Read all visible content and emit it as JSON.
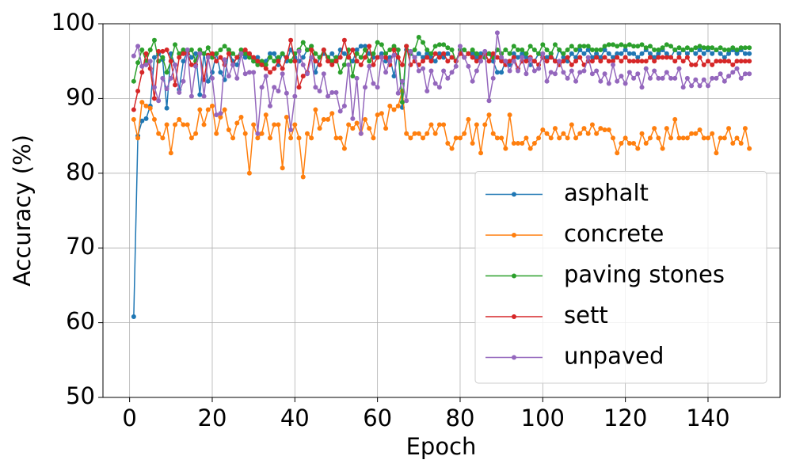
{
  "chart_data": {
    "type": "line",
    "xlabel": "Epoch",
    "ylabel": "Accuracy (%)",
    "xlim": [
      -6.45,
      157.45
    ],
    "ylim": [
      50,
      100
    ],
    "xticks": [
      0,
      20,
      40,
      60,
      80,
      100,
      120,
      140
    ],
    "yticks": [
      50,
      60,
      70,
      80,
      90,
      100
    ],
    "grid": true,
    "legend": "lower right",
    "x": [
      1,
      2,
      3,
      4,
      5,
      6,
      7,
      8,
      9,
      10,
      11,
      12,
      13,
      14,
      15,
      16,
      17,
      18,
      19,
      20,
      21,
      22,
      23,
      24,
      25,
      26,
      27,
      28,
      29,
      30,
      31,
      32,
      33,
      34,
      35,
      36,
      37,
      38,
      39,
      40,
      41,
      42,
      43,
      44,
      45,
      46,
      47,
      48,
      49,
      50,
      51,
      52,
      53,
      54,
      55,
      56,
      57,
      58,
      59,
      60,
      61,
      62,
      63,
      64,
      65,
      66,
      67,
      68,
      69,
      70,
      71,
      72,
      73,
      74,
      75,
      76,
      77,
      78,
      79,
      80,
      81,
      82,
      83,
      84,
      85,
      86,
      87,
      88,
      89,
      90,
      91,
      92,
      93,
      94,
      95,
      96,
      97,
      98,
      99,
      100,
      101,
      102,
      103,
      104,
      105,
      106,
      107,
      108,
      109,
      110,
      111,
      112,
      113,
      114,
      115,
      116,
      117,
      118,
      119,
      120,
      121,
      122,
      123,
      124,
      125,
      126,
      127,
      128,
      129,
      130,
      131,
      132,
      133,
      134,
      135,
      136,
      137,
      138,
      139,
      140,
      141,
      142,
      143,
      144,
      145,
      146,
      147,
      148,
      149,
      150
    ],
    "series": [
      {
        "name": "asphalt",
        "color": "#1f77b4",
        "values": [
          60.8,
          85.0,
          87.0,
          87.3,
          89.0,
          95.5,
          96.0,
          95.2,
          88.7,
          96.0,
          94.5,
          91.2,
          95.0,
          96.3,
          95.5,
          96.0,
          90.5,
          96.0,
          92.3,
          93.5,
          96.0,
          93.5,
          92.5,
          96.5,
          95.0,
          94.5,
          96.0,
          95.5,
          96.0,
          95.0,
          95.5,
          94.5,
          95.0,
          96.0,
          96.0,
          94.5,
          96.0,
          95.0,
          96.5,
          95.5,
          95.0,
          95.5,
          96.5,
          97.0,
          93.5,
          95.5,
          96.0,
          95.5,
          96.0,
          95.0,
          96.5,
          96.0,
          95.5,
          95.0,
          96.5,
          97.0,
          97.0,
          96.0,
          95.5,
          95.5,
          96.0,
          95.0,
          95.5,
          93.0,
          96.5,
          88.8,
          96.5,
          96.0,
          95.5,
          96.0,
          95.5,
          96.0,
          95.5,
          95.0,
          96.0,
          95.5,
          96.0,
          95.5,
          95.0,
          96.5,
          95.5,
          96.0,
          96.0,
          95.5,
          96.0,
          95.5,
          96.0,
          95.0,
          93.5,
          93.5,
          95.0,
          94.5,
          96.0,
          95.5,
          96.0,
          95.5,
          94.5,
          95.0,
          96.0,
          95.5,
          95.5,
          96.0,
          95.0,
          96.5,
          95.5,
          95.0,
          96.0,
          95.5,
          96.5,
          96.0,
          96.5,
          95.5,
          96.0,
          95.5,
          96.5,
          96.0,
          95.5,
          96.0,
          96.0,
          96.5,
          96.0,
          96.0,
          95.5,
          96.0,
          96.5,
          96.0,
          95.5,
          96.0,
          96.5,
          96.0,
          95.5,
          96.5,
          96.0,
          96.5,
          96.0,
          96.5,
          96.0,
          96.5,
          96.0,
          96.5,
          96.0,
          96.5,
          96.0,
          95.5,
          96.0,
          96.5,
          96.0,
          96.5,
          96.0,
          96.0
        ]
      },
      {
        "name": "concrete",
        "color": "#ff7f0e",
        "values": [
          87.2,
          84.7,
          89.5,
          89.0,
          88.7,
          87.2,
          85.3,
          84.7,
          86.5,
          82.7,
          86.5,
          87.2,
          86.5,
          86.5,
          84.7,
          85.3,
          88.5,
          86.5,
          88.5,
          89.0,
          85.3,
          87.5,
          88.5,
          85.8,
          84.7,
          86.7,
          87.5,
          85.3,
          80.0,
          86.5,
          84.7,
          85.3,
          87.8,
          84.7,
          86.5,
          86.5,
          80.7,
          87.5,
          84.7,
          86.5,
          84.7,
          79.5,
          85.3,
          84.7,
          88.5,
          86.0,
          87.2,
          87.2,
          88.0,
          84.7,
          84.7,
          83.3,
          86.5,
          86.0,
          86.7,
          85.3,
          87.2,
          86.0,
          84.7,
          87.8,
          88.0,
          86.0,
          89.0,
          88.5,
          89.0,
          91.0,
          85.3,
          84.7,
          85.3,
          85.3,
          84.7,
          85.3,
          86.5,
          85.3,
          86.5,
          86.5,
          84.0,
          83.3,
          84.7,
          84.7,
          85.3,
          87.2,
          84.0,
          86.5,
          82.7,
          86.5,
          87.8,
          85.3,
          84.7,
          84.7,
          83.3,
          87.8,
          84.0,
          84.0,
          84.0,
          84.7,
          83.3,
          84.0,
          84.7,
          85.8,
          85.3,
          84.7,
          86.0,
          84.7,
          85.3,
          84.7,
          86.5,
          84.7,
          85.3,
          86.0,
          85.3,
          86.5,
          85.3,
          86.0,
          85.8,
          85.8,
          84.7,
          82.7,
          84.0,
          84.7,
          84.0,
          84.0,
          83.3,
          85.3,
          84.0,
          84.7,
          86.0,
          84.7,
          83.3,
          86.0,
          84.7,
          87.2,
          84.7,
          84.7,
          84.7,
          85.3,
          85.3,
          85.8,
          84.7,
          84.7,
          85.3,
          82.7,
          84.7,
          84.7,
          86.0,
          84.0,
          84.7,
          84.0,
          86.0,
          83.3
        ]
      },
      {
        "name": "paving stones",
        "color": "#2ca02c",
        "values": [
          92.3,
          94.8,
          96.5,
          95.0,
          96.5,
          97.8,
          95.0,
          95.5,
          93.5,
          95.0,
          97.2,
          96.0,
          96.5,
          96.0,
          96.5,
          95.0,
          96.5,
          96.0,
          96.8,
          95.5,
          96.0,
          96.5,
          97.0,
          96.5,
          96.0,
          95.5,
          96.5,
          96.0,
          95.5,
          95.0,
          94.5,
          95.0,
          94.5,
          95.5,
          95.0,
          95.5,
          96.0,
          95.5,
          95.0,
          96.0,
          96.5,
          97.5,
          96.5,
          97.0,
          96.0,
          95.5,
          96.5,
          95.5,
          95.0,
          95.5,
          93.5,
          94.5,
          96.5,
          93.0,
          96.0,
          95.5,
          96.5,
          95.0,
          96.0,
          97.5,
          97.2,
          96.0,
          96.5,
          97.0,
          96.5,
          89.5,
          97.0,
          96.0,
          96.5,
          98.2,
          97.5,
          96.5,
          96.0,
          97.0,
          97.2,
          97.2,
          96.8,
          96.5,
          95.0,
          96.5,
          96.5,
          96.0,
          96.5,
          96.0,
          95.5,
          95.5,
          96.0,
          95.5,
          96.5,
          96.0,
          96.5,
          96.0,
          97.0,
          96.5,
          96.5,
          96.0,
          97.0,
          96.5,
          96.0,
          97.2,
          96.5,
          96.0,
          97.2,
          96.5,
          96.0,
          96.5,
          97.0,
          96.5,
          97.0,
          97.0,
          97.0,
          96.5,
          96.5,
          96.5,
          97.0,
          97.2,
          97.2,
          97.0,
          97.2,
          97.0,
          97.2,
          97.0,
          97.0,
          97.2,
          96.8,
          97.0,
          96.5,
          96.5,
          96.8,
          97.2,
          97.0,
          96.5,
          96.8,
          96.5,
          96.8,
          96.5,
          96.8,
          97.0,
          96.8,
          96.8,
          96.8,
          96.5,
          96.8,
          96.5,
          96.5,
          96.8,
          96.5,
          96.8,
          96.8,
          96.8
        ]
      },
      {
        "name": "sett",
        "color": "#d62728",
        "values": [
          88.5,
          91.0,
          93.5,
          96.0,
          94.0,
          90.0,
          96.3,
          96.3,
          96.5,
          95.0,
          91.8,
          95.5,
          96.0,
          96.0,
          94.5,
          94.5,
          96.0,
          92.5,
          95.8,
          96.0,
          95.0,
          95.5,
          94.5,
          96.0,
          94.5,
          95.5,
          96.0,
          96.5,
          96.0,
          95.5,
          95.0,
          94.5,
          94.0,
          93.5,
          94.0,
          95.0,
          94.0,
          95.5,
          97.8,
          95.0,
          91.5,
          93.0,
          93.5,
          96.5,
          95.0,
          94.5,
          96.5,
          95.0,
          94.5,
          95.0,
          95.5,
          97.8,
          95.5,
          96.5,
          95.0,
          94.5,
          95.5,
          97.0,
          94.5,
          95.5,
          95.5,
          95.5,
          94.5,
          96.5,
          95.5,
          94.5,
          97.0,
          94.5,
          95.0,
          94.5,
          95.0,
          95.5,
          95.0,
          96.0,
          95.5,
          96.0,
          95.0,
          95.5,
          95.0,
          96.0,
          95.5,
          96.0,
          95.5,
          95.0,
          95.5,
          96.0,
          95.0,
          96.0,
          95.5,
          95.0,
          94.5,
          95.0,
          95.5,
          94.0,
          95.0,
          95.0,
          95.5,
          95.0,
          94.5,
          95.5,
          95.0,
          95.5,
          95.0,
          94.5,
          95.0,
          95.5,
          94.5,
          95.0,
          95.5,
          94.5,
          95.0,
          95.0,
          95.5,
          95.0,
          95.5,
          95.0,
          95.0,
          95.5,
          95.0,
          95.5,
          95.0,
          95.0,
          95.0,
          95.0,
          95.0,
          95.5,
          95.0,
          95.5,
          95.5,
          95.5,
          95.5,
          95.0,
          95.5,
          95.0,
          95.5,
          94.5,
          94.5,
          95.5,
          94.5,
          95.0,
          94.5,
          95.0,
          95.0,
          95.0,
          95.0,
          94.5,
          95.0,
          95.0,
          95.0,
          95.0
        ]
      },
      {
        "name": "unpaved",
        "color": "#9467bd",
        "values": [
          95.7,
          97.0,
          94.3,
          94.5,
          95.0,
          91.5,
          89.7,
          92.7,
          91.3,
          92.7,
          94.5,
          90.8,
          92.3,
          96.5,
          90.3,
          94.3,
          96.0,
          90.3,
          95.5,
          92.7,
          87.8,
          88.0,
          95.2,
          93.0,
          94.5,
          92.7,
          96.0,
          93.3,
          93.5,
          93.5,
          85.3,
          91.5,
          93.0,
          89.0,
          91.5,
          91.0,
          93.3,
          90.7,
          85.8,
          90.3,
          96.3,
          94.5,
          93.3,
          95.5,
          91.5,
          91.0,
          93.3,
          90.3,
          90.8,
          90.8,
          88.3,
          89.0,
          94.5,
          87.3,
          92.7,
          85.3,
          91.5,
          94.3,
          92.0,
          91.5,
          95.5,
          93.5,
          95.0,
          95.8,
          90.7,
          92.3,
          89.7,
          96.3,
          95.5,
          93.7,
          94.0,
          91.0,
          93.7,
          92.0,
          91.5,
          93.7,
          92.7,
          93.5,
          94.3,
          97.0,
          95.5,
          94.3,
          92.3,
          93.7,
          95.0,
          96.3,
          89.7,
          92.7,
          98.8,
          95.5,
          95.0,
          93.7,
          95.0,
          93.7,
          95.5,
          93.3,
          95.3,
          93.7,
          94.0,
          96.0,
          92.3,
          93.5,
          93.3,
          95.0,
          93.5,
          92.7,
          93.7,
          92.3,
          93.5,
          93.7,
          95.5,
          93.3,
          93.7,
          92.3,
          93.3,
          92.0,
          94.5,
          92.3,
          93.0,
          92.0,
          93.5,
          92.7,
          93.3,
          91.5,
          94.0,
          92.7,
          93.7,
          92.7,
          92.7,
          93.5,
          92.7,
          92.7,
          94.0,
          91.5,
          92.7,
          91.7,
          92.5,
          91.7,
          92.5,
          91.7,
          92.7,
          92.7,
          93.3,
          92.3,
          93.0,
          93.5,
          94.0,
          92.7,
          93.3,
          93.3
        ]
      }
    ]
  }
}
